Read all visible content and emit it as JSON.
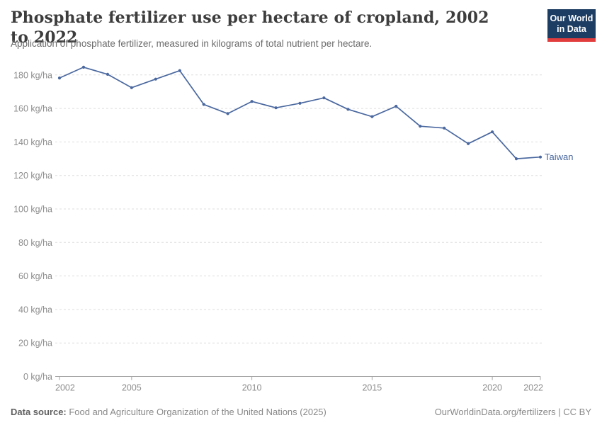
{
  "header": {
    "logo": {
      "line1": "Our World",
      "line2": "in Data",
      "bg_color": "#1d3d63",
      "accent_color": "#e23d3d"
    }
  },
  "chart_data": {
    "type": "line",
    "title": "Phosphate fertilizer use per hectare of cropland, 2002 to 2022",
    "subtitle": "Application of phosphate fertilizer, measured in kilograms of total nutrient per hectare.",
    "x": [
      2002,
      2003,
      2004,
      2005,
      2006,
      2007,
      2008,
      2009,
      2010,
      2011,
      2012,
      2013,
      2014,
      2015,
      2016,
      2017,
      2018,
      2019,
      2020,
      2021,
      2022
    ],
    "series": [
      {
        "name": "Taiwan",
        "color": "#4a689f",
        "values": [
          178.2,
          184.6,
          180.4,
          172.4,
          177.5,
          182.6,
          162.4,
          156.9,
          164.2,
          160.4,
          163.1,
          166.3,
          159.5,
          155.1,
          161.3,
          149.4,
          148.3,
          139.0,
          146.0,
          130.0,
          131.0
        ]
      }
    ],
    "x_ticks": [
      2002,
      2005,
      2010,
      2015,
      2020,
      2022
    ],
    "y_ticks": [
      0,
      20,
      40,
      60,
      80,
      100,
      120,
      140,
      160,
      180
    ],
    "y_tick_suffix": " kg/ha",
    "xlim": [
      2002,
      2022
    ],
    "ylim": [
      0,
      189
    ],
    "grid": "horizontal-dashed",
    "grid_color": "#dedede",
    "axis_color": "#a5a5a5",
    "tick_label_color": "#8d8d8d",
    "legend_position": "end-of-line-label"
  },
  "footer": {
    "datasource_label": "Data source:",
    "datasource_text": " Food and Agriculture Organization of the United Nations (2025)",
    "rights": "OurWorldinData.org/fertilizers | CC BY"
  }
}
